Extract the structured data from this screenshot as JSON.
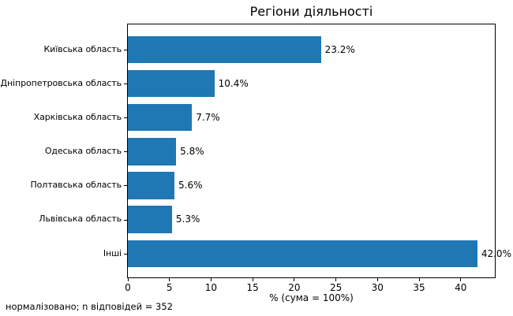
{
  "chart_data": {
    "type": "bar",
    "orientation": "horizontal",
    "title": "Регіони діяльності",
    "categories": [
      "Київська область",
      "Дніпропетровська область",
      "Харківська область",
      "Одеська область",
      "Полтавська область",
      "Львівська область",
      "Інші"
    ],
    "values": [
      23.2,
      10.4,
      7.7,
      5.8,
      5.6,
      5.3,
      42.0
    ],
    "value_labels": [
      "23.2%",
      "10.4%",
      "7.7%",
      "5.8%",
      "5.6%",
      "5.3%",
      "42.0%"
    ],
    "xlabel": "% (сума = 100%)",
    "xticks": [
      0,
      5,
      10,
      15,
      20,
      25,
      30,
      35,
      40
    ],
    "xtick_labels": [
      "0",
      "5",
      "10",
      "15",
      "20",
      "25",
      "30",
      "35",
      "40"
    ],
    "xlim": [
      0,
      44.1
    ],
    "grid": false,
    "legend": null,
    "bar_color": "#1f77b4",
    "footnote": "нормалізовано; n відповідей = 352"
  }
}
